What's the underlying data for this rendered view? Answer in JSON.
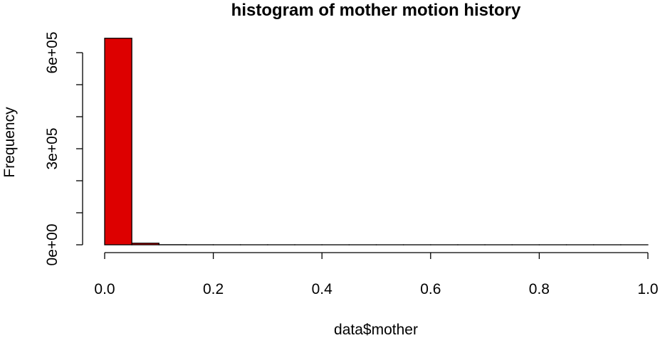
{
  "chart_data": {
    "type": "bar",
    "title": "histogram of mother motion history",
    "xlabel": "data$mother",
    "ylabel": "Frequency",
    "bin_edges": [
      0.0,
      0.05,
      0.1,
      0.15,
      0.2,
      0.25,
      0.3,
      0.35,
      0.4,
      0.45,
      0.5,
      0.55,
      0.6,
      0.65,
      0.7,
      0.75,
      0.8,
      0.85,
      0.9,
      0.95,
      1.0
    ],
    "values": [
      645000,
      5000,
      300,
      100,
      50,
      30,
      20,
      10,
      10,
      5,
      5,
      5,
      5,
      5,
      5,
      5,
      5,
      5,
      5,
      5
    ],
    "xlim": [
      0,
      1
    ],
    "ylim": [
      0,
      600000
    ],
    "x_ticks": [
      0.0,
      0.2,
      0.4,
      0.6,
      0.8,
      1.0
    ],
    "x_tick_labels": [
      "0.0",
      "0.2",
      "0.4",
      "0.6",
      "0.8",
      "1.0"
    ],
    "y_ticks": [
      0,
      100000,
      200000,
      300000,
      400000,
      500000,
      600000
    ],
    "y_tick_labels": [
      "0e+00",
      "",
      "",
      "3e+05",
      "",
      "",
      "6e+05"
    ],
    "bar_color": "#dd0000",
    "grid": false,
    "legend": "none"
  }
}
